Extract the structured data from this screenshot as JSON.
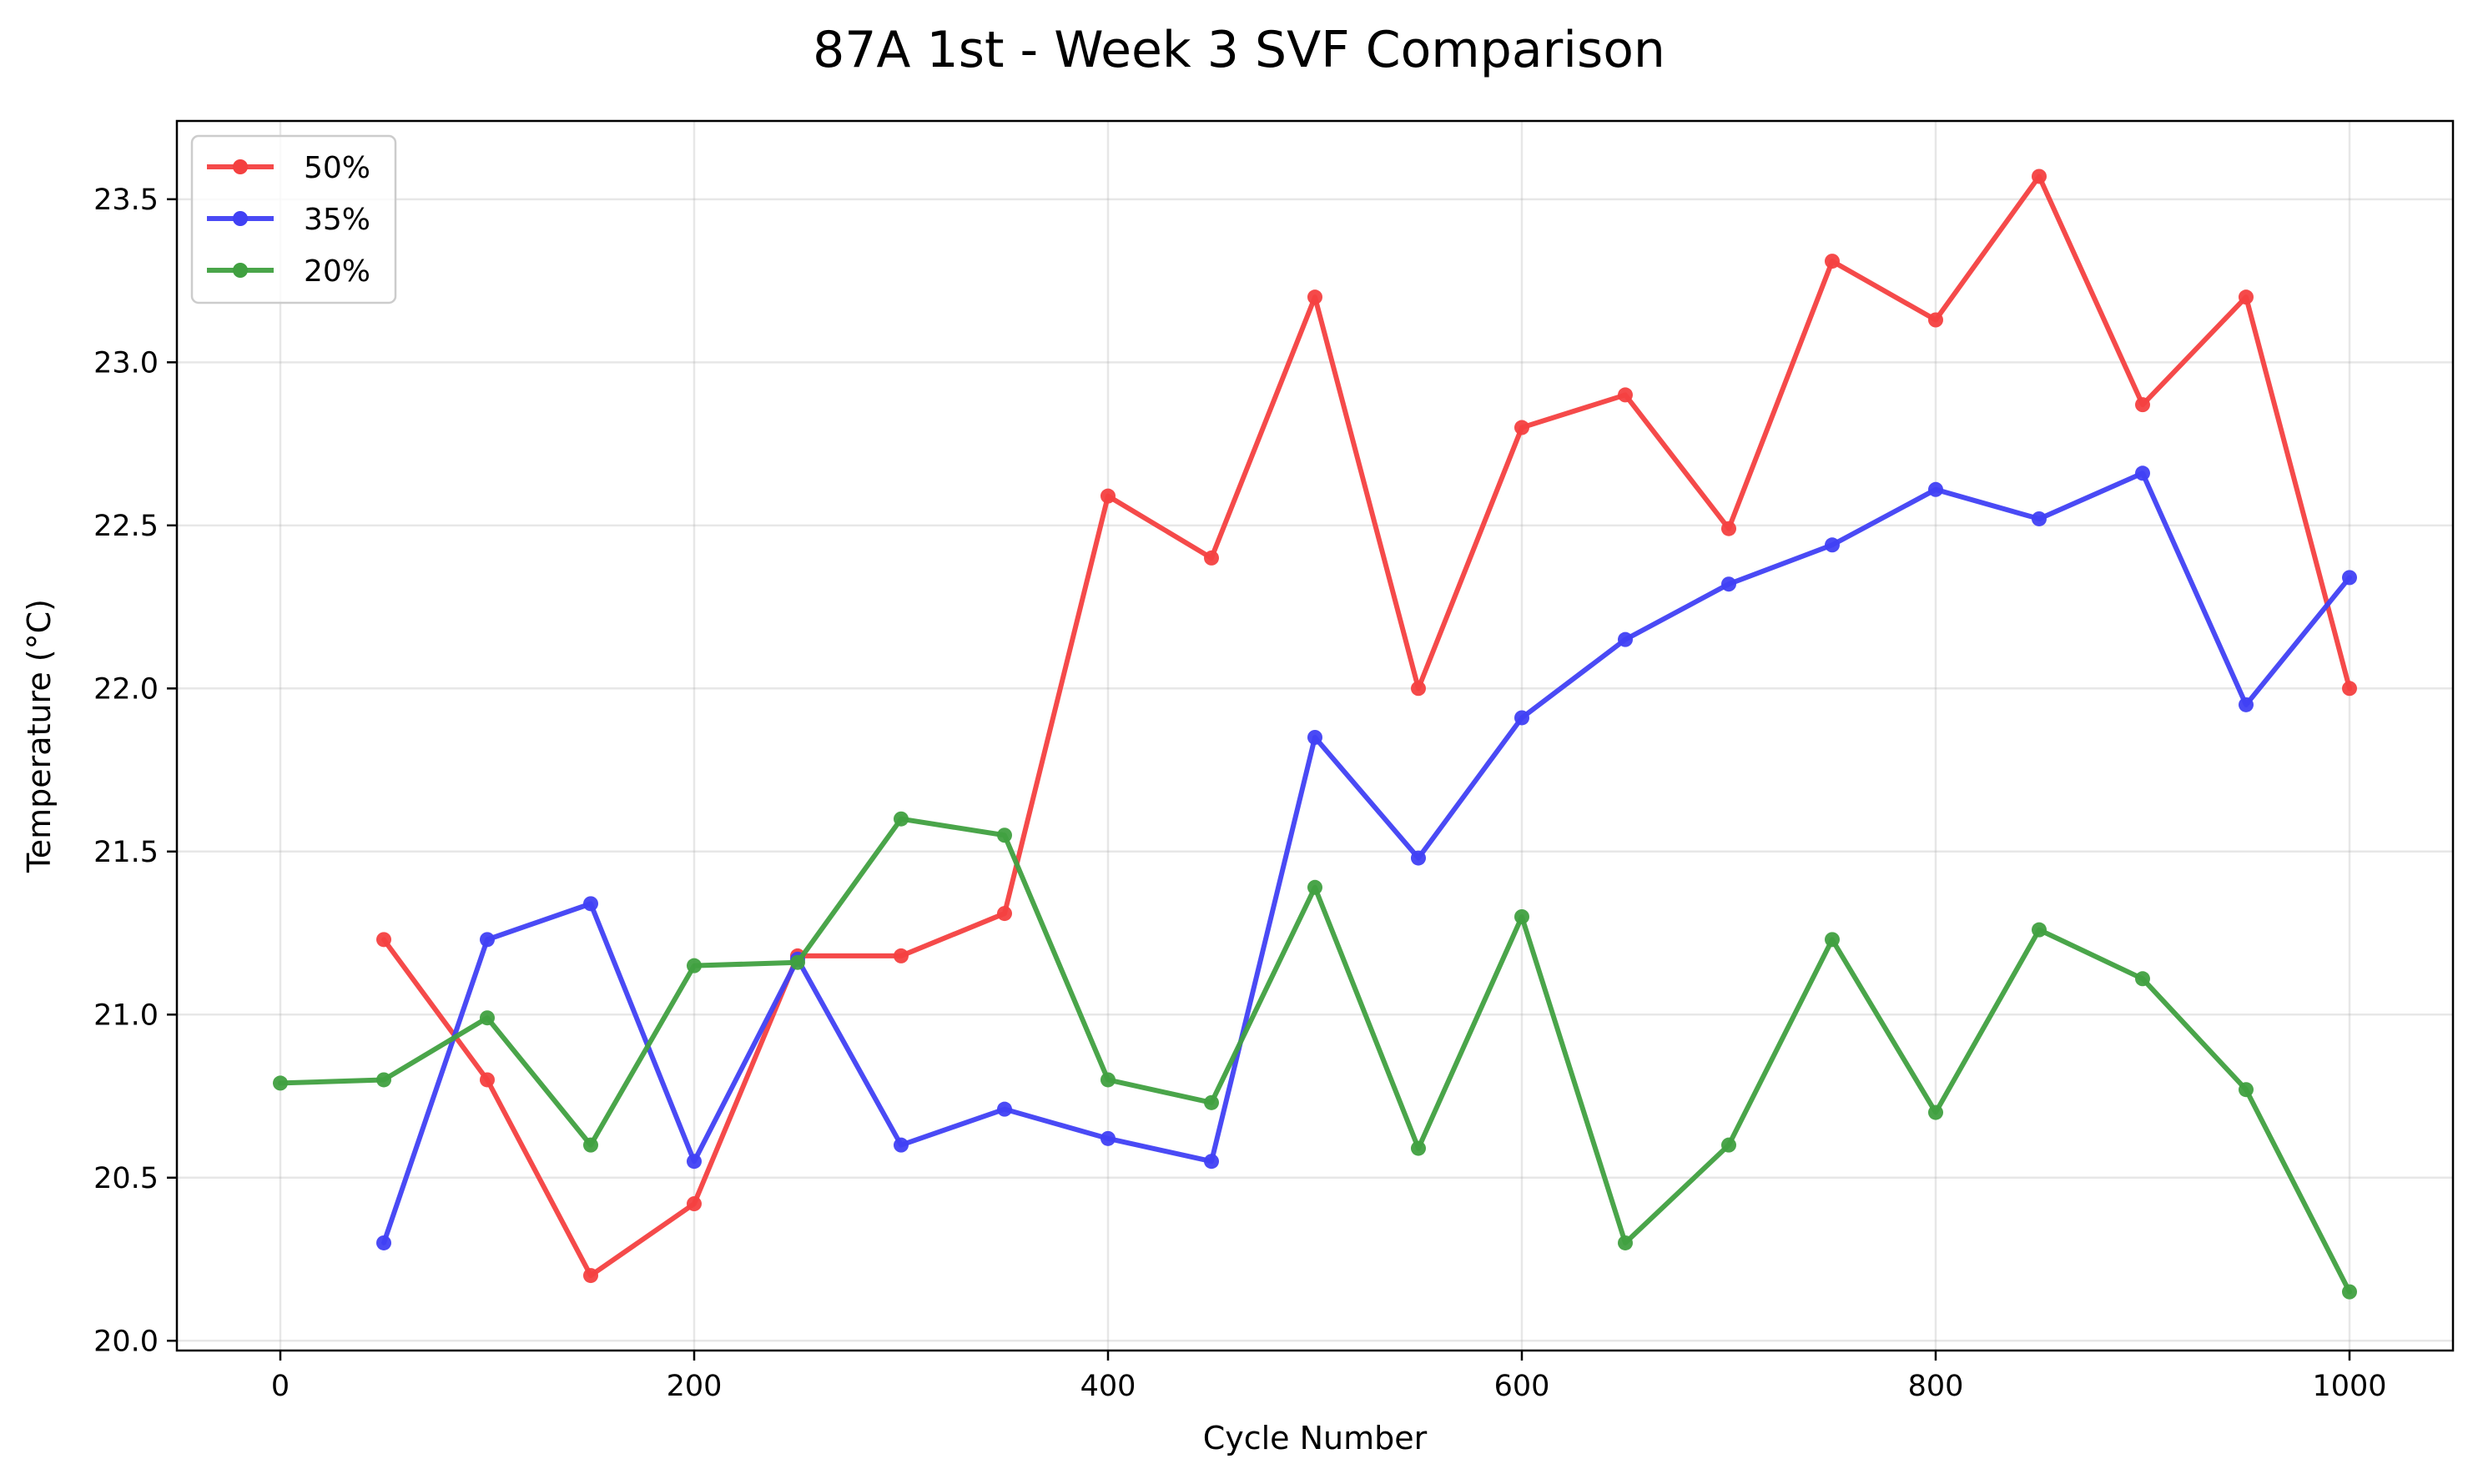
{
  "chart_data": {
    "type": "line",
    "title": "87A 1st - Week 3 SVF Comparison",
    "xlabel": "Cycle Number",
    "ylabel": "Temperature (°C)",
    "xlim": [
      -50,
      1050
    ],
    "ylim": [
      19.97,
      23.74
    ],
    "x_ticks": [
      0,
      200,
      400,
      600,
      800,
      1000
    ],
    "y_ticks": [
      20.0,
      20.5,
      21.0,
      21.5,
      22.0,
      22.5,
      23.0,
      23.5
    ],
    "grid": true,
    "legend_position": "top-left",
    "x": [
      0,
      50,
      100,
      150,
      200,
      250,
      300,
      350,
      400,
      450,
      500,
      550,
      600,
      650,
      700,
      750,
      800,
      850,
      900,
      950,
      1000
    ],
    "series": [
      {
        "name": "50%",
        "color": "#f44040",
        "values": [
          null,
          21.23,
          20.8,
          20.2,
          20.42,
          21.18,
          21.18,
          21.31,
          22.59,
          22.4,
          23.2,
          22.0,
          22.8,
          22.9,
          22.49,
          23.31,
          23.13,
          23.57,
          22.87,
          23.2,
          22.0
        ]
      },
      {
        "name": "35%",
        "color": "#4040f4",
        "values": [
          null,
          20.3,
          21.23,
          21.34,
          20.55,
          21.17,
          20.6,
          20.71,
          20.62,
          20.55,
          21.85,
          21.48,
          21.91,
          22.15,
          22.32,
          22.44,
          22.61,
          22.52,
          22.66,
          21.95,
          22.34
        ]
      },
      {
        "name": "20%",
        "color": "#40a040",
        "values": [
          20.79,
          20.8,
          20.99,
          20.6,
          21.15,
          21.16,
          21.6,
          21.55,
          20.8,
          20.73,
          21.39,
          20.59,
          21.3,
          20.3,
          20.6,
          21.23,
          20.7,
          21.26,
          21.11,
          20.77,
          20.15
        ]
      }
    ]
  }
}
